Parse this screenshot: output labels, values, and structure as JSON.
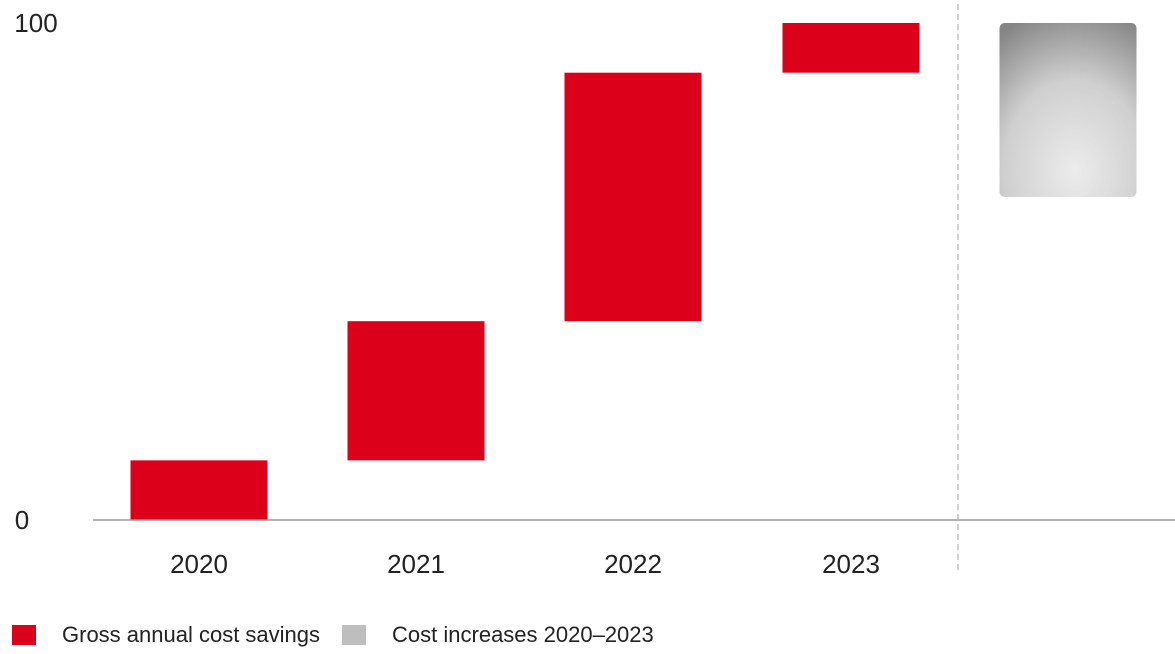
{
  "chart_data": {
    "type": "bar",
    "subtype": "waterfall",
    "categories": [
      "2020",
      "2021",
      "2022",
      "2023",
      ""
    ],
    "series": [
      {
        "name": "Gross annual cost savings",
        "color": "#DC001A",
        "bars": [
          {
            "category": "2020",
            "from": 0,
            "to": 12
          },
          {
            "category": "2021",
            "from": 12,
            "to": 40
          },
          {
            "category": "2022",
            "from": 40,
            "to": 90
          },
          {
            "category": "2023",
            "from": 90,
            "to": 100
          }
        ]
      },
      {
        "name": "Cost increases 2020–2023",
        "color": "#BEBEBE",
        "bars": [
          {
            "category": "",
            "from": 65,
            "to": 100
          }
        ]
      }
    ],
    "y_ticks": [
      0,
      100
    ],
    "ylim": [
      0,
      100
    ],
    "grid": false,
    "legend_position": "bottom-left"
  },
  "legend": {
    "items": [
      {
        "label": "Gross annual cost savings",
        "color": "#DC001A"
      },
      {
        "label": "Cost increases 2020–2023",
        "color": "#BEBEBE"
      }
    ]
  }
}
